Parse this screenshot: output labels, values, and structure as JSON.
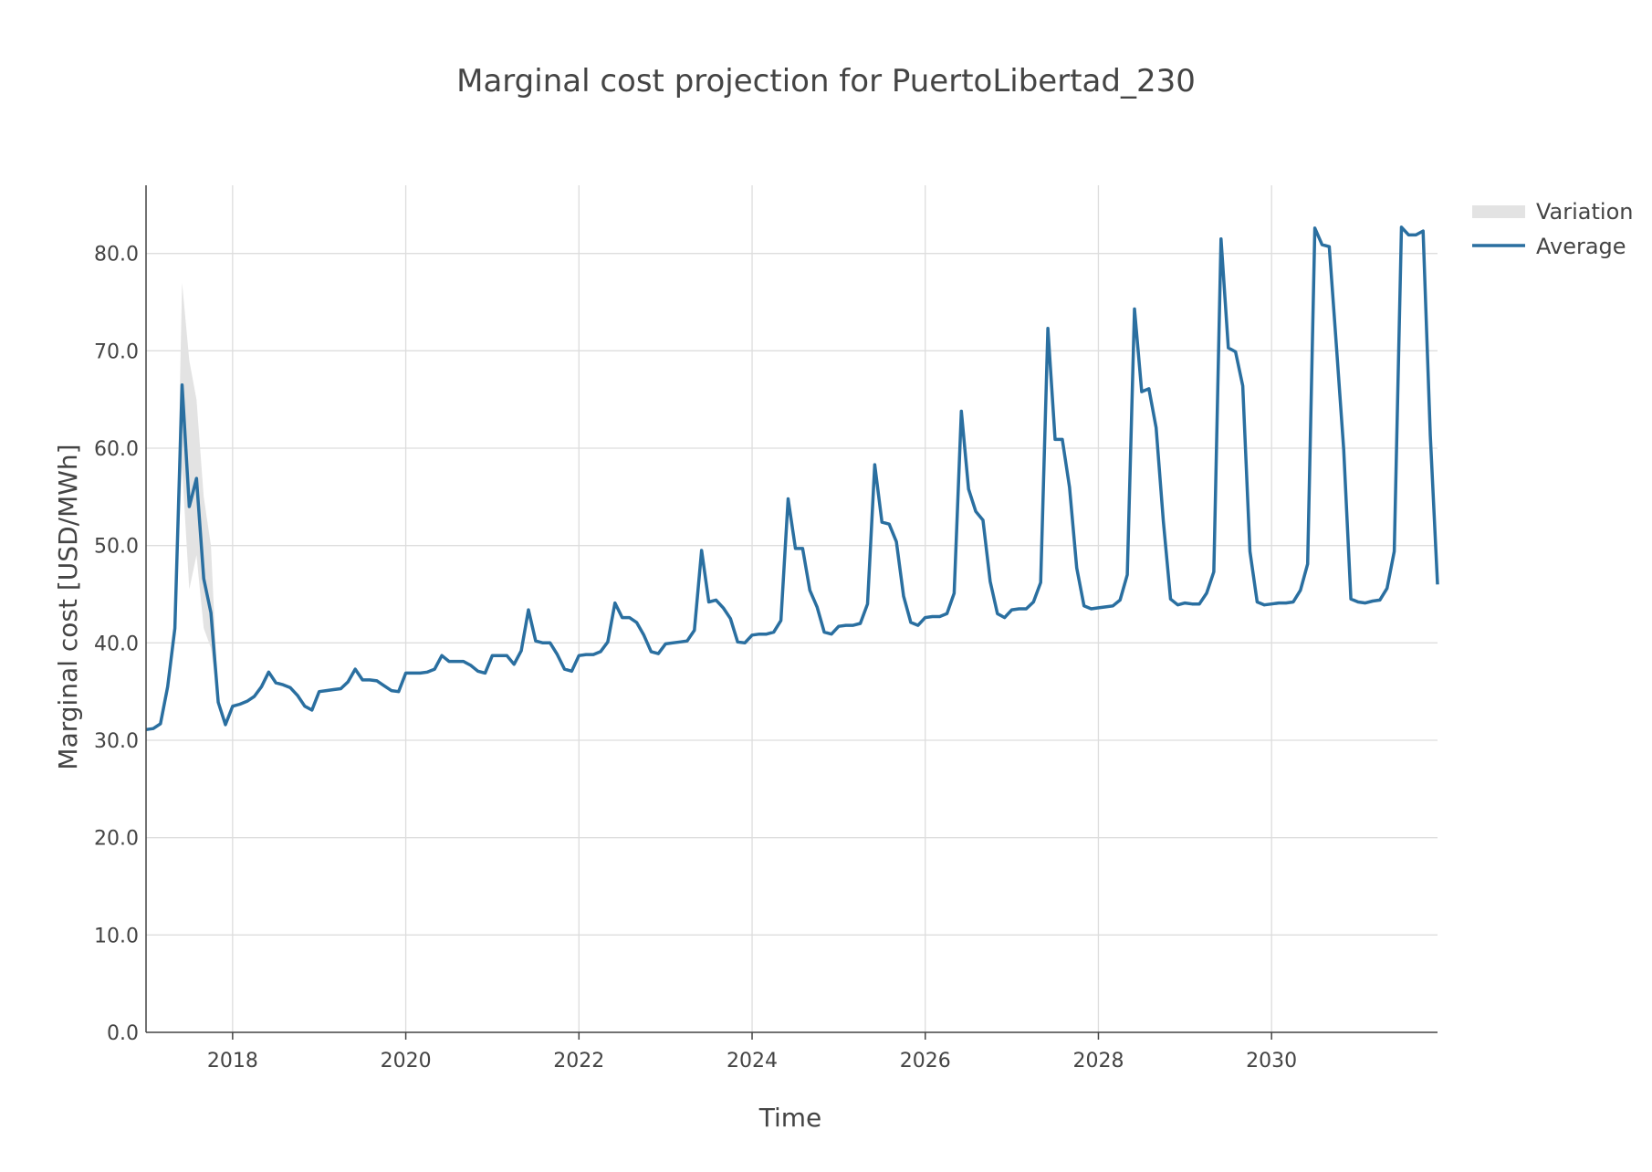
{
  "chart_data": {
    "type": "line",
    "title": "Marginal cost projection for PuertoLibertad_230",
    "xlabel": "Time",
    "ylabel": "Marginal cost [USD/MWh]",
    "xlim": [
      "2017-01",
      "2031-12"
    ],
    "ylim": [
      0,
      87
    ],
    "y_ticks": [
      "0.0",
      "10.0",
      "20.0",
      "30.0",
      "40.0",
      "50.0",
      "60.0",
      "70.0",
      "80.0"
    ],
    "x_ticks": [
      "2018",
      "2020",
      "2022",
      "2024",
      "2026",
      "2028",
      "2030"
    ],
    "grid": true,
    "legend_position": "top-right",
    "colors": {
      "average": "#2a6fa0",
      "variation": "#e3e3e3"
    },
    "series": [
      {
        "name": "Average",
        "type": "line",
        "x": [
          "2017-01",
          "2017-02",
          "2017-03",
          "2017-04",
          "2017-05",
          "2017-06",
          "2017-07",
          "2017-08",
          "2017-09",
          "2017-10",
          "2017-11",
          "2017-12",
          "2018-01",
          "2018-02",
          "2018-03",
          "2018-04",
          "2018-05",
          "2018-06",
          "2018-07",
          "2018-08",
          "2018-09",
          "2018-10",
          "2018-11",
          "2018-12",
          "2019-01",
          "2019-02",
          "2019-03",
          "2019-04",
          "2019-05",
          "2019-06",
          "2019-07",
          "2019-08",
          "2019-09",
          "2019-10",
          "2019-11",
          "2019-12",
          "2020-01",
          "2020-02",
          "2020-03",
          "2020-04",
          "2020-05",
          "2020-06",
          "2020-07",
          "2020-08",
          "2020-09",
          "2020-10",
          "2020-11",
          "2020-12",
          "2021-01",
          "2021-02",
          "2021-03",
          "2021-04",
          "2021-05",
          "2021-06",
          "2021-07",
          "2021-08",
          "2021-09",
          "2021-10",
          "2021-11",
          "2021-12",
          "2022-01",
          "2022-02",
          "2022-03",
          "2022-04",
          "2022-05",
          "2022-06",
          "2022-07",
          "2022-08",
          "2022-09",
          "2022-10",
          "2022-11",
          "2022-12",
          "2023-01",
          "2023-02",
          "2023-03",
          "2023-04",
          "2023-05",
          "2023-06",
          "2023-07",
          "2023-08",
          "2023-09",
          "2023-10",
          "2023-11",
          "2023-12",
          "2024-01",
          "2024-02",
          "2024-03",
          "2024-04",
          "2024-05",
          "2024-06",
          "2024-07",
          "2024-08",
          "2024-09",
          "2024-10",
          "2024-11",
          "2024-12",
          "2025-01",
          "2025-02",
          "2025-03",
          "2025-04",
          "2025-05",
          "2025-06",
          "2025-07",
          "2025-08",
          "2025-09",
          "2025-10",
          "2025-11",
          "2025-12",
          "2026-01",
          "2026-02",
          "2026-03",
          "2026-04",
          "2026-05",
          "2026-06",
          "2026-07",
          "2026-08",
          "2026-09",
          "2026-10",
          "2026-11",
          "2026-12",
          "2027-01",
          "2027-02",
          "2027-03",
          "2027-04",
          "2027-05",
          "2027-06",
          "2027-07",
          "2027-08",
          "2027-09",
          "2027-10",
          "2027-11",
          "2027-12",
          "2028-01",
          "2028-02",
          "2028-03",
          "2028-04",
          "2028-05",
          "2028-06",
          "2028-07",
          "2028-08",
          "2028-09",
          "2028-10",
          "2028-11",
          "2028-12",
          "2029-01",
          "2029-02",
          "2029-03",
          "2029-04",
          "2029-05",
          "2029-06",
          "2029-07",
          "2029-08",
          "2029-09",
          "2029-10",
          "2029-11",
          "2029-12",
          "2030-01",
          "2030-02",
          "2030-03",
          "2030-04",
          "2030-05",
          "2030-06",
          "2030-07",
          "2030-08",
          "2030-09",
          "2030-10",
          "2030-11",
          "2030-12",
          "2031-01",
          "2031-02",
          "2031-03",
          "2031-04",
          "2031-05",
          "2031-06",
          "2031-07",
          "2031-08",
          "2031-09",
          "2031-10",
          "2031-11",
          "2031-12"
        ],
        "y": [
          31.1,
          31.2,
          31.7,
          35.5,
          41.5,
          66.5,
          54.0,
          56.9,
          46.6,
          43.1,
          33.9,
          31.6,
          33.5,
          33.7,
          34.0,
          34.5,
          35.5,
          37.0,
          35.9,
          35.7,
          35.4,
          34.6,
          33.5,
          33.1,
          35.0,
          35.1,
          35.2,
          35.3,
          36.0,
          37.3,
          36.2,
          36.2,
          36.1,
          35.6,
          35.1,
          35.0,
          36.9,
          36.9,
          36.9,
          37.0,
          37.3,
          38.7,
          38.1,
          38.1,
          38.1,
          37.7,
          37.1,
          36.9,
          38.7,
          38.7,
          38.7,
          37.8,
          39.2,
          43.4,
          40.2,
          40.0,
          40.0,
          38.8,
          37.3,
          37.1,
          38.7,
          38.8,
          38.8,
          39.1,
          40.1,
          44.1,
          42.6,
          42.6,
          42.1,
          40.8,
          39.1,
          38.9,
          39.9,
          40.0,
          40.1,
          40.2,
          41.3,
          49.5,
          44.2,
          44.4,
          43.6,
          42.5,
          40.1,
          40.0,
          40.8,
          40.9,
          40.9,
          41.1,
          42.3,
          54.8,
          49.7,
          49.7,
          45.4,
          43.7,
          41.1,
          40.9,
          41.7,
          41.8,
          41.8,
          42.0,
          44.0,
          58.3,
          52.4,
          52.2,
          50.4,
          44.8,
          42.1,
          41.8,
          42.6,
          42.7,
          42.7,
          43.0,
          45.1,
          63.8,
          55.8,
          53.5,
          52.6,
          46.3,
          43.0,
          42.6,
          43.4,
          43.5,
          43.5,
          44.2,
          46.2,
          72.3,
          60.9,
          60.9,
          56.0,
          47.7,
          43.8,
          43.5,
          43.6,
          43.7,
          43.8,
          44.4,
          47.0,
          74.3,
          65.8,
          66.1,
          62.1,
          52.5,
          44.5,
          43.9,
          44.1,
          44.0,
          44.0,
          45.1,
          47.3,
          81.5,
          70.3,
          69.9,
          66.4,
          49.4,
          44.2,
          43.9,
          44.0,
          44.1,
          44.1,
          44.2,
          45.4,
          48.1,
          82.6,
          80.9,
          80.7,
          70.4,
          59.9,
          44.5,
          44.2,
          44.1,
          44.3,
          44.4,
          45.6,
          49.4,
          82.7,
          81.9,
          81.9,
          82.3,
          61.3,
          46.0
        ]
      },
      {
        "name": "Variation",
        "type": "band",
        "x": [
          "2017-01",
          "2017-02",
          "2017-03",
          "2017-04",
          "2017-05",
          "2017-06",
          "2017-07",
          "2017-08",
          "2017-09",
          "2017-10",
          "2017-11",
          "2017-12",
          "2018-01"
        ],
        "upper": [
          31.1,
          31.2,
          31.7,
          35.5,
          41.5,
          77.0,
          69.0,
          65.0,
          55.0,
          50.0,
          33.9,
          31.6,
          33.5
        ],
        "lower": [
          31.1,
          31.2,
          31.7,
          35.5,
          41.5,
          58.0,
          45.5,
          49.0,
          41.5,
          39.5,
          33.9,
          31.6,
          33.5
        ]
      }
    ]
  }
}
